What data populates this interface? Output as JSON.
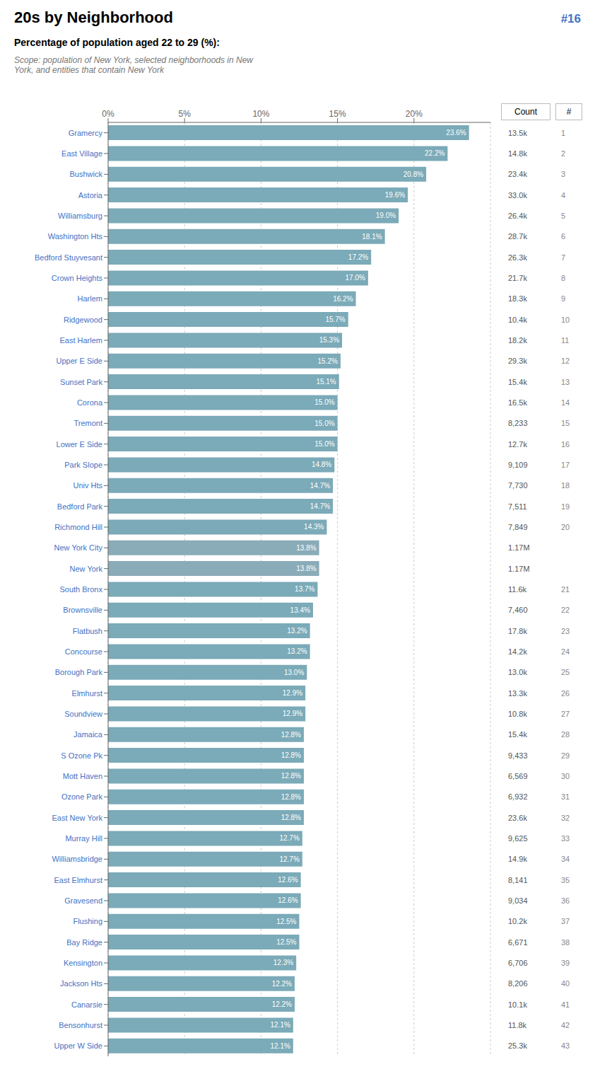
{
  "chart_data": {
    "type": "bar",
    "orientation": "horizontal",
    "title": "20s by Neighborhood",
    "annotation": "#16",
    "subtitle": [
      "Percentage of population aged 22 to 29 (%):",
      "Scope: population of New York, selected neighborhoods in New\nYork, and entities that contain New York"
    ],
    "categories": [
      "Gramercy",
      "East Village",
      "Bushwick",
      "Astoria",
      "Williamsburg",
      "Washington Hts",
      "Bedford Stuyvesant",
      "Crown Heights",
      "Harlem",
      "Ridgewood",
      "East Harlem",
      "Upper E Side",
      "Sunset Park",
      "Corona",
      "Tremont",
      "Lower E Side",
      "Park Slope",
      "Univ Hts",
      "Bedford Park",
      "Richmond Hill",
      "New York City",
      "New York",
      "South Bronx",
      "Brownsville",
      "Flatbush",
      "Concourse",
      "Borough Park",
      "Elmhurst",
      "Soundview",
      "Jamaica",
      "S Ozone Pk",
      "Mott Haven",
      "Ozone Park",
      "East New York",
      "Murray Hill",
      "Williamsbridge",
      "East Elmhurst",
      "Gravesend",
      "Flushing",
      "Bay Ridge",
      "Kensington",
      "Jackson Hts",
      "Canarsie",
      "Bensonhurst",
      "Upper W Side"
    ],
    "values": [
      23.6,
      22.2,
      20.8,
      19.6,
      19.0,
      18.1,
      17.2,
      17.0,
      16.2,
      15.7,
      15.3,
      15.2,
      15.1,
      15.0,
      15.0,
      15.0,
      14.8,
      14.7,
      14.7,
      14.3,
      13.8,
      13.8,
      13.7,
      13.4,
      13.2,
      13.2,
      13.0,
      12.9,
      12.9,
      12.8,
      12.8,
      12.8,
      12.8,
      12.8,
      12.7,
      12.7,
      12.6,
      12.6,
      12.5,
      12.5,
      12.3,
      12.2,
      12.2,
      12.1,
      12.1
    ],
    "value_labels": [
      "23.6%",
      "22.2%",
      "20.8%",
      "19.6%",
      "19.0%",
      "18.1%",
      "17.2%",
      "17.0%",
      "16.2%",
      "15.7%",
      "15.3%",
      "15.2%",
      "15.1%",
      "15.0%",
      "15.0%",
      "15.0%",
      "14.8%",
      "14.7%",
      "14.7%",
      "14.3%",
      "13.8%",
      "13.8%",
      "13.7%",
      "13.4%",
      "13.2%",
      "13.2%",
      "13.0%",
      "12.9%",
      "12.9%",
      "12.8%",
      "12.8%",
      "12.8%",
      "12.8%",
      "12.8%",
      "12.7%",
      "12.7%",
      "12.6%",
      "12.6%",
      "12.5%",
      "12.5%",
      "12.3%",
      "12.2%",
      "12.2%",
      "12.1%",
      "12.1%"
    ],
    "data_labels": true,
    "colors": [
      "#7BAAB8",
      "#7BAAB8",
      "#7BAAB8",
      "#7BAAB8",
      "#7BAAB8",
      "#7BAAB8",
      "#7BAAB8",
      "#7BAAB8",
      "#7BAAB8",
      "#7BAAB8",
      "#7BAAB8",
      "#7BAAB8",
      "#7BAAB8",
      "#7BAAB8",
      "#7BAAB8",
      "#7BAAB8",
      "#7BAAB8",
      "#7BAAB8",
      "#7BAAB8",
      "#7BAAB8",
      "#8AABB8",
      "#8AABB8",
      "#7BAAB8",
      "#7BAAB8",
      "#7BAAB8",
      "#7BAAB8",
      "#7BAAB8",
      "#7BAAB8",
      "#7BAAB8",
      "#7BAAB8",
      "#7BAAB8",
      "#7BAAB8",
      "#7BAAB8",
      "#7BAAB8",
      "#7BAAB8",
      "#7BAAB8",
      "#7BAAB8",
      "#7BAAB8",
      "#7BAAB8",
      "#7BAAB8",
      "#7BAAB8",
      "#7BAAB8",
      "#7BAAB8",
      "#7BAAB8",
      "#7BAAB8"
    ],
    "counts_label": "Count",
    "counts": [
      "13.5k",
      "14.8k",
      "23.4k",
      "33.0k",
      "26.4k",
      "28.7k",
      "26.3k",
      "21.7k",
      "18.3k",
      "10.4k",
      "18.2k",
      "29.3k",
      "15.4k",
      "16.5k",
      "8,233",
      "12.7k",
      "9,109",
      "7,730",
      "7,511",
      "7,849",
      "1.17M",
      "1.17M",
      "11.6k",
      "7,460",
      "17.8k",
      "14.2k",
      "13.0k",
      "13.3k",
      "10.8k",
      "15.4k",
      "9,433",
      "6,569",
      "6,932",
      "23.6k",
      "9,625",
      "14.9k",
      "8,141",
      "9,034",
      "10.2k",
      "6,671",
      "6,706",
      "8,206",
      "10.1k",
      "11.8k",
      "25.3k"
    ],
    "ranks_label": "#",
    "ranks": [
      "1",
      "2",
      "3",
      "4",
      "5",
      "6",
      "7",
      "8",
      "9",
      "10",
      "11",
      "12",
      "13",
      "14",
      "15",
      "16",
      "17",
      "18",
      "19",
      "20",
      null,
      null,
      "21",
      "22",
      "23",
      "24",
      "25",
      "26",
      "27",
      "28",
      "29",
      "30",
      "31",
      "32",
      "33",
      "34",
      "35",
      "36",
      "37",
      "38",
      "39",
      "40",
      "41",
      "42",
      "43"
    ],
    "xlim": [
      0,
      25
    ],
    "xticks": [
      {
        "value": 0,
        "label": "0%"
      },
      {
        "value": 5,
        "label": "5%"
      },
      {
        "value": 10,
        "label": "10%"
      },
      {
        "value": 15,
        "label": "15%"
      },
      {
        "value": 20,
        "label": "20%"
      }
    ],
    "grid": true
  }
}
